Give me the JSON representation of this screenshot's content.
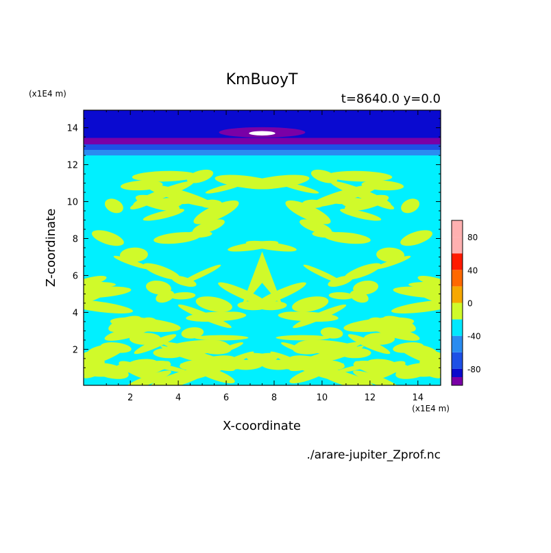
{
  "chart_data": {
    "type": "heatmap",
    "title": "KmBuoyT",
    "subtitle": "t=8640.0 y=0.0",
    "xlabel": "X-coordinate",
    "ylabel": "Z-coordinate",
    "x_unit": "(x1E4 m)",
    "y_unit": "(x1E4 m)",
    "xlim": [
      0.05,
      14.95
    ],
    "ylim": [
      0.05,
      14.95
    ],
    "x_ticks": [
      2,
      4,
      6,
      8,
      10,
      12,
      14
    ],
    "y_ticks": [
      2,
      4,
      6,
      8,
      10,
      12,
      14
    ],
    "source": "./arare-jupiter_Zprof.nc",
    "colorbar": {
      "levels": [
        -100,
        -90,
        -80,
        -60,
        -40,
        -20,
        0,
        20,
        40,
        60,
        80,
        100
      ],
      "tick_values": [
        -80,
        -40,
        0,
        40,
        80
      ],
      "tick_labels": [
        "-80",
        "-40",
        "0",
        "40",
        "80"
      ],
      "colors": [
        "#7a00a6",
        "#0a0acc",
        "#1e50e6",
        "#2a8cf0",
        "#00e8ff",
        "#d0fa2a",
        "#f6a800",
        "#ff6800",
        "#ff1a00",
        "#ffb0b0",
        "#ffb0b0"
      ]
    },
    "field": {
      "background_value": -10,
      "background_color": "#00f0ff",
      "bands": [
        {
          "zmin": 12.9,
          "zmax": 14.95,
          "value": -85,
          "color": "#0a0ad0"
        },
        {
          "zmin": 13.1,
          "zmax": 13.45,
          "value": -95,
          "color": "#7a00a6"
        },
        {
          "zmin": 12.75,
          "zmax": 13.1,
          "value": -75,
          "color": "#1e50e6"
        },
        {
          "zmin": 12.5,
          "zmax": 12.8,
          "value": -40,
          "color": "#2a8cf0"
        }
      ],
      "hot_spot": {
        "x": 7.5,
        "z": 13.7,
        "value": -100,
        "color": "#ffffff"
      },
      "positive_color": "#d0fa2a"
    }
  }
}
